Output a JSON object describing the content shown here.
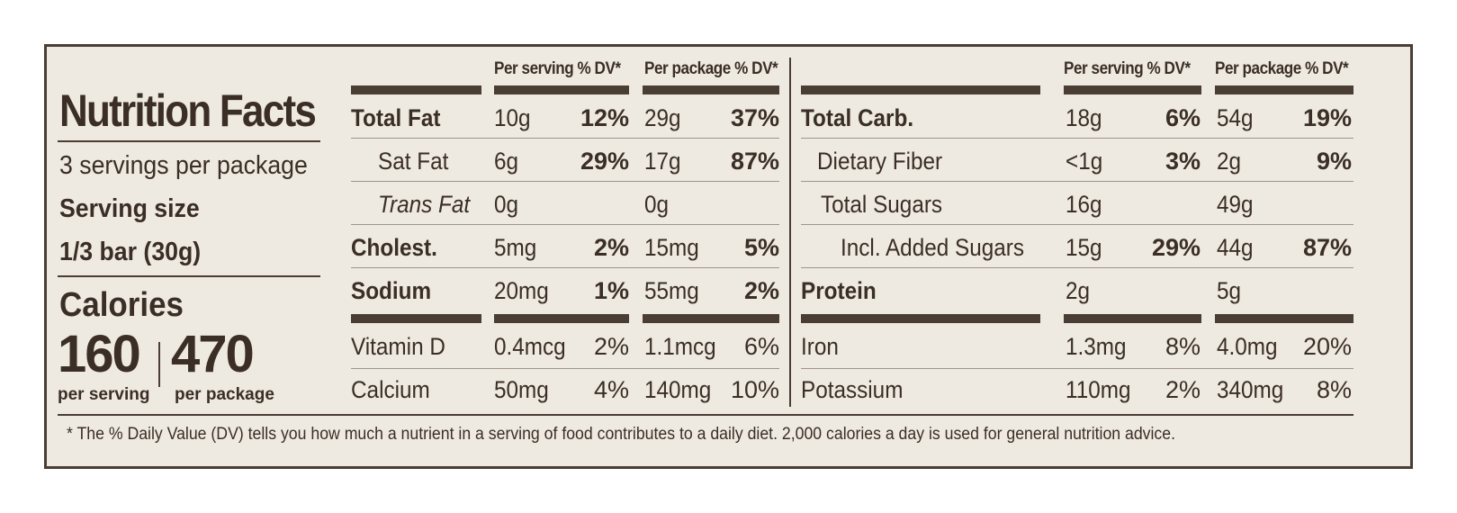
{
  "title": "Nutrition Facts",
  "servings": "3 servings per package",
  "serving_size_label": "Serving size",
  "serving_size_value": "1/3 bar (30g)",
  "calories_label": "Calories",
  "calories_serving": "160",
  "calories_serving_label": "per serving",
  "calories_package": "470",
  "calories_package_label": "per package",
  "headers": {
    "per_serving": "Per serving % DV*",
    "per_package": "Per package % DV*"
  },
  "left_rows": [
    {
      "name": "Total Fat",
      "s_amt": "10g",
      "s_dv": "12%",
      "p_amt": "29g",
      "p_dv": "37%"
    },
    {
      "name": "Sat Fat",
      "s_amt": "6g",
      "s_dv": "29%",
      "p_amt": "17g",
      "p_dv": "87%"
    },
    {
      "name": "Trans Fat",
      "s_amt": "0g",
      "s_dv": "",
      "p_amt": "0g",
      "p_dv": ""
    },
    {
      "name": "Cholest.",
      "s_amt": "5mg",
      "s_dv": "2%",
      "p_amt": "15mg",
      "p_dv": "5%"
    },
    {
      "name": "Sodium",
      "s_amt": "20mg",
      "s_dv": "1%",
      "p_amt": "55mg",
      "p_dv": "2%"
    },
    {
      "name": "Vitamin D",
      "s_amt": "0.4mcg",
      "s_dv": "2%",
      "p_amt": "1.1mcg",
      "p_dv": "6%"
    },
    {
      "name": "Calcium",
      "s_amt": "50mg",
      "s_dv": "4%",
      "p_amt": "140mg",
      "p_dv": "10%"
    }
  ],
  "right_rows": [
    {
      "name": "Total Carb.",
      "s_amt": "18g",
      "s_dv": "6%",
      "p_amt": "54g",
      "p_dv": "19%"
    },
    {
      "name": "Dietary Fiber",
      "s_amt": "<1g",
      "s_dv": "3%",
      "p_amt": "2g",
      "p_dv": "9%"
    },
    {
      "name": "Total Sugars",
      "s_amt": "16g",
      "s_dv": "",
      "p_amt": "49g",
      "p_dv": ""
    },
    {
      "name": "Incl. Added Sugars",
      "s_amt": "15g",
      "s_dv": "29%",
      "p_amt": "44g",
      "p_dv": "87%"
    },
    {
      "name": "Protein",
      "s_amt": "2g",
      "s_dv": "",
      "p_amt": "5g",
      "p_dv": ""
    },
    {
      "name": "Iron",
      "s_amt": "1.3mg",
      "s_dv": "8%",
      "p_amt": "4.0mg",
      "p_dv": "20%"
    },
    {
      "name": "Potassium",
      "s_amt": "110mg",
      "s_dv": "2%",
      "p_amt": "340mg",
      "p_dv": "8%"
    }
  ],
  "footnote": "* The % Daily Value (DV) tells you how much a nutrient in a serving of food contributes to a daily diet. 2,000 calories a day is used for general nutrition advice."
}
